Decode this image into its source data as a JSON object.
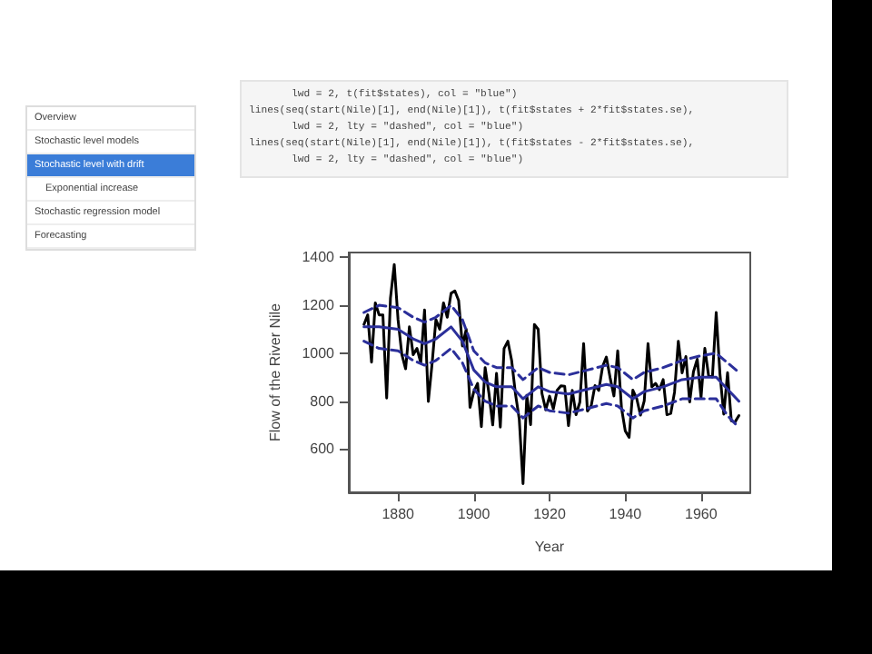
{
  "chart_data": {
    "type": "line",
    "xlabel": "Year",
    "ylabel": "Flow of the River Nile",
    "annotations": [
      "Overview",
      "Stochastic level models",
      "Stochastic level with drift",
      "Exponential increase",
      "Stochastic regression model",
      "Forecasting",
      "       lwd = 2, t(fit$states), col = \"blue\")",
      "lines(seq(start(Nile)[1], end(Nile)[1]), t(fit$states + 2*fit$states.se),",
      "       lwd = 2, lty = \"dashed\", col = \"blue\")",
      "lines(seq(start(Nile)[1], end(Nile)[1]), t(fit$states - 2*fit$states.se),",
      "       lwd = 2, lty = \"dashed\", col = \"blue\")"
    ],
    "x": [
      1871,
      1872,
      1873,
      1874,
      1875,
      1876,
      1877,
      1878,
      1879,
      1880,
      1881,
      1882,
      1883,
      1884,
      1885,
      1886,
      1887,
      1888,
      1889,
      1890,
      1891,
      1892,
      1893,
      1894,
      1895,
      1896,
      1897,
      1898,
      1899,
      1900,
      1901,
      1902,
      1903,
      1904,
      1905,
      1906,
      1907,
      1908,
      1909,
      1910,
      1911,
      1912,
      1913,
      1914,
      1915,
      1916,
      1917,
      1918,
      1919,
      1920,
      1921,
      1922,
      1923,
      1924,
      1925,
      1926,
      1927,
      1928,
      1929,
      1930,
      1931,
      1932,
      1933,
      1934,
      1935,
      1936,
      1937,
      1938,
      1939,
      1940,
      1941,
      1942,
      1943,
      1944,
      1945,
      1946,
      1947,
      1948,
      1949,
      1950,
      1951,
      1952,
      1953,
      1954,
      1955,
      1956,
      1957,
      1958,
      1959,
      1960,
      1961,
      1962,
      1963,
      1964,
      1965,
      1966,
      1967,
      1968,
      1969,
      1970
    ],
    "series": [
      {
        "color": "#000000",
        "line_style": "solid",
        "values": [
          1120,
          1160,
          963,
          1210,
          1160,
          1160,
          813,
          1230,
          1370,
          1140,
          995,
          935,
          1110,
          994,
          1020,
          960,
          1180,
          799,
          958,
          1140,
          1100,
          1210,
          1150,
          1250,
          1260,
          1220,
          1030,
          1100,
          774,
          840,
          874,
          694,
          940,
          833,
          701,
          916,
          692,
          1020,
          1050,
          969,
          831,
          726,
          456,
          824,
          702,
          1120,
          1100,
          832,
          764,
          821,
          768,
          845,
          864,
          862,
          698,
          845,
          744,
          796,
          1040,
          759,
          781,
          865,
          845,
          944,
          984,
          897,
          822,
          1010,
          771,
          676,
          649,
          846,
          812,
          742,
          801,
          1040,
          860,
          874,
          848,
          890,
          744,
          749,
          838,
          1050,
          918,
          986,
          797,
          923,
          975,
          815,
          1020,
          906,
          901,
          1170,
          912,
          746,
          919,
          718,
          714,
          740
        ]
      },
      {
        "color": "#2b2f9a",
        "line_style": "solid",
        "x": [
          1871,
          1875,
          1880,
          1884,
          1887,
          1890,
          1894,
          1897,
          1900,
          1903,
          1906,
          1910,
          1913,
          1917,
          1920,
          1925,
          1930,
          1935,
          1938,
          1942,
          1945,
          1950,
          1955,
          1960,
          1964,
          1967,
          1970
        ],
        "values": [
          1110,
          1110,
          1100,
          1060,
          1040,
          1060,
          1110,
          1050,
          930,
          880,
          860,
          860,
          810,
          860,
          840,
          830,
          850,
          870,
          860,
          810,
          840,
          860,
          890,
          900,
          900,
          850,
          800
        ]
      },
      {
        "color": "#2b2f9a",
        "line_style": "dashed",
        "x": [
          1871,
          1875,
          1880,
          1884,
          1887,
          1890,
          1894,
          1897,
          1900,
          1903,
          1906,
          1910,
          1913,
          1917,
          1920,
          1925,
          1930,
          1935,
          1938,
          1942,
          1945,
          1950,
          1955,
          1960,
          1964,
          1967,
          1970
        ],
        "values": [
          1170,
          1200,
          1190,
          1150,
          1130,
          1150,
          1200,
          1140,
          1010,
          960,
          940,
          940,
          890,
          940,
          920,
          910,
          930,
          950,
          940,
          890,
          920,
          940,
          970,
          990,
          1000,
          960,
          920
        ]
      },
      {
        "color": "#2b2f9a",
        "line_style": "dashed",
        "x": [
          1871,
          1875,
          1880,
          1884,
          1887,
          1890,
          1894,
          1897,
          1900,
          1903,
          1906,
          1910,
          1913,
          1917,
          1920,
          1925,
          1930,
          1935,
          1938,
          1942,
          1945,
          1950,
          1955,
          1960,
          1964,
          1967,
          1970
        ],
        "values": [
          1050,
          1020,
          1010,
          970,
          950,
          970,
          1020,
          960,
          850,
          800,
          780,
          780,
          730,
          780,
          760,
          750,
          770,
          790,
          780,
          730,
          760,
          780,
          810,
          810,
          810,
          740,
          690
        ]
      }
    ],
    "xlim": [
      1867,
      1973
    ],
    "xticks": [
      1880,
      1900,
      1920,
      1940,
      1960
    ],
    "ylim": [
      420,
      1420
    ],
    "yticks": [
      600,
      800,
      1000,
      1200,
      1400
    ],
    "grid": false,
    "marker": "none"
  }
}
